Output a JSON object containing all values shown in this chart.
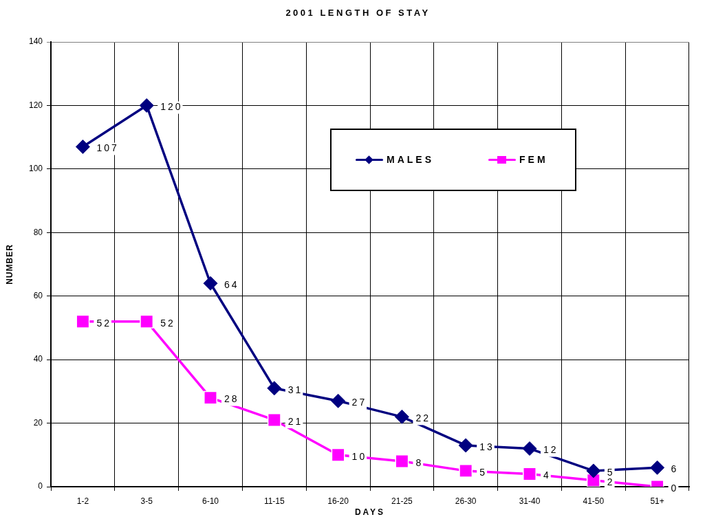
{
  "chart_data": {
    "type": "line",
    "title": "2001 LENGTH OF STAY",
    "xlabel": "DAYS",
    "ylabel": "NUMBER",
    "categories": [
      "1-2",
      "3-5",
      "6-10",
      "11-15",
      "16-20",
      "21-25",
      "26-30",
      "31-40",
      "41-50",
      "51+"
    ],
    "series": [
      {
        "name": "MALES",
        "color": "#000080",
        "marker": "diamond",
        "values": [
          107,
          120,
          64,
          31,
          27,
          22,
          13,
          12,
          5,
          6
        ]
      },
      {
        "name": "FEM",
        "color": "#ff00ff",
        "marker": "square",
        "values": [
          52,
          52,
          28,
          21,
          10,
          8,
          5,
          4,
          2,
          0
        ]
      }
    ],
    "ylim": [
      0,
      140
    ],
    "yticks": [
      0,
      20,
      40,
      60,
      80,
      100,
      120,
      140
    ],
    "grid": true,
    "legend": "top right",
    "data_labels": true,
    "line_style": "solid"
  }
}
